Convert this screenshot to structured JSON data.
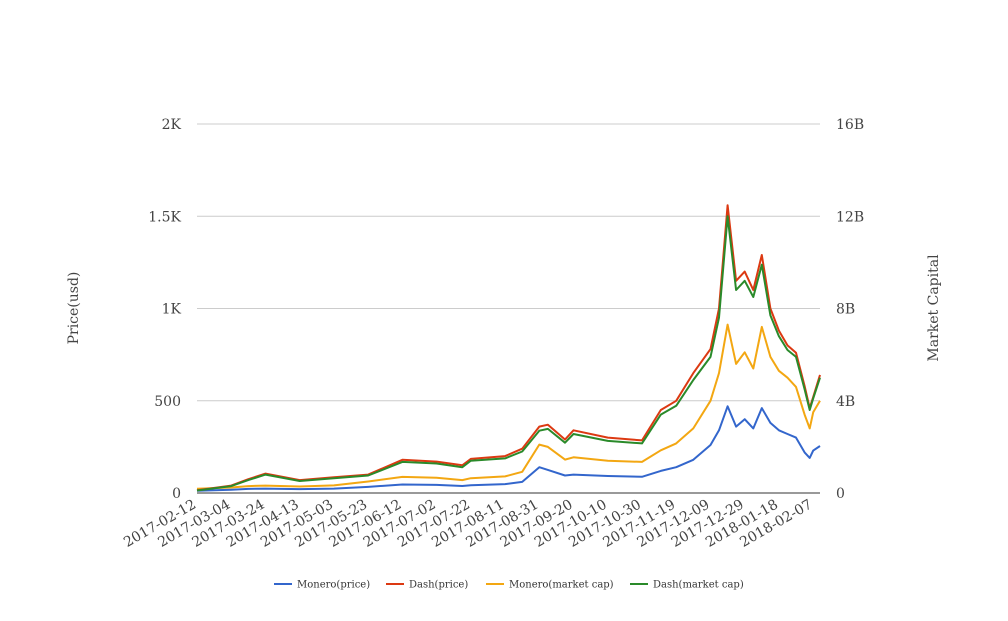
{
  "chart_data": {
    "type": "line",
    "title": "",
    "ylabel": "Price(usd)",
    "y2label": "Market Capital",
    "ylim": [
      0,
      2000
    ],
    "y2lim": [
      0,
      16000000000
    ],
    "yticks": [
      {
        "value": 0,
        "label": "0"
      },
      {
        "value": 500,
        "label": "500"
      },
      {
        "value": 1000,
        "label": "1K"
      },
      {
        "value": 1500,
        "label": "1.5K"
      },
      {
        "value": 2000,
        "label": "2K"
      }
    ],
    "y2ticks": [
      {
        "value": 0,
        "label": "0"
      },
      {
        "value": 4000000000,
        "label": "4B"
      },
      {
        "value": 8000000000,
        "label": "8B"
      },
      {
        "value": 12000000000,
        "label": "12B"
      },
      {
        "value": 16000000000,
        "label": "16B"
      }
    ],
    "xlim": [
      "2017-02-12",
      "2018-02-11"
    ],
    "xtick_labels": [
      "2017-02-12",
      "2017-03-04",
      "2017-03-24",
      "2017-04-13",
      "2017-05-03",
      "2017-05-23",
      "2017-06-12",
      "2017-07-02",
      "2017-07-22",
      "2017-08-11",
      "2017-08-31",
      "2017-09-20",
      "2017-10-10",
      "2017-10-30",
      "2017-11-19",
      "2017-12-09",
      "2017-12-29",
      "2018-01-18",
      "2018-02-07"
    ],
    "grid": true,
    "legend_position": "bottom",
    "series": [
      {
        "name": "Monero(price)",
        "axis": "left",
        "color": "#3366cc",
        "points": [
          [
            "2017-02-12",
            12
          ],
          [
            "2017-03-04",
            18
          ],
          [
            "2017-03-14",
            22
          ],
          [
            "2017-03-24",
            24
          ],
          [
            "2017-04-13",
            21
          ],
          [
            "2017-05-03",
            24
          ],
          [
            "2017-05-23",
            33
          ],
          [
            "2017-06-12",
            46
          ],
          [
            "2017-07-02",
            44
          ],
          [
            "2017-07-17",
            38
          ],
          [
            "2017-07-22",
            42
          ],
          [
            "2017-08-11",
            48
          ],
          [
            "2017-08-21",
            60
          ],
          [
            "2017-08-31",
            140
          ],
          [
            "2017-09-05",
            125
          ],
          [
            "2017-09-15",
            95
          ],
          [
            "2017-09-20",
            100
          ],
          [
            "2017-10-10",
            92
          ],
          [
            "2017-10-30",
            88
          ],
          [
            "2017-11-10",
            120
          ],
          [
            "2017-11-19",
            140
          ],
          [
            "2017-11-29",
            180
          ],
          [
            "2017-12-09",
            260
          ],
          [
            "2017-12-14",
            340
          ],
          [
            "2017-12-19",
            470
          ],
          [
            "2017-12-24",
            360
          ],
          [
            "2017-12-29",
            400
          ],
          [
            "2018-01-03",
            350
          ],
          [
            "2018-01-08",
            460
          ],
          [
            "2018-01-13",
            380
          ],
          [
            "2018-01-18",
            340
          ],
          [
            "2018-01-23",
            320
          ],
          [
            "2018-01-28",
            300
          ],
          [
            "2018-02-02",
            220
          ],
          [
            "2018-02-05",
            190
          ],
          [
            "2018-02-07",
            230
          ],
          [
            "2018-02-11",
            255
          ]
        ]
      },
      {
        "name": "Dash(price)",
        "axis": "left",
        "color": "#dc3912",
        "points": [
          [
            "2017-02-12",
            15
          ],
          [
            "2017-03-04",
            40
          ],
          [
            "2017-03-14",
            75
          ],
          [
            "2017-03-24",
            105
          ],
          [
            "2017-04-13",
            70
          ],
          [
            "2017-05-03",
            85
          ],
          [
            "2017-05-23",
            100
          ],
          [
            "2017-06-12",
            180
          ],
          [
            "2017-07-02",
            170
          ],
          [
            "2017-07-17",
            150
          ],
          [
            "2017-07-22",
            185
          ],
          [
            "2017-08-11",
            200
          ],
          [
            "2017-08-21",
            240
          ],
          [
            "2017-08-31",
            360
          ],
          [
            "2017-09-05",
            370
          ],
          [
            "2017-09-15",
            290
          ],
          [
            "2017-09-20",
            340
          ],
          [
            "2017-10-10",
            300
          ],
          [
            "2017-10-30",
            285
          ],
          [
            "2017-11-10",
            450
          ],
          [
            "2017-11-19",
            500
          ],
          [
            "2017-11-29",
            650
          ],
          [
            "2017-12-09",
            780
          ],
          [
            "2017-12-14",
            1000
          ],
          [
            "2017-12-19",
            1560
          ],
          [
            "2017-12-24",
            1150
          ],
          [
            "2017-12-29",
            1200
          ],
          [
            "2018-01-03",
            1100
          ],
          [
            "2018-01-08",
            1290
          ],
          [
            "2018-01-13",
            1000
          ],
          [
            "2018-01-18",
            880
          ],
          [
            "2018-01-23",
            800
          ],
          [
            "2018-01-28",
            760
          ],
          [
            "2018-02-02",
            580
          ],
          [
            "2018-02-05",
            460
          ],
          [
            "2018-02-07",
            520
          ],
          [
            "2018-02-11",
            640
          ]
        ]
      },
      {
        "name": "Monero(market cap)",
        "axis": "right",
        "color": "#f3a712",
        "points": [
          [
            "2017-02-12",
            180000000
          ],
          [
            "2017-03-04",
            240000000
          ],
          [
            "2017-03-14",
            300000000
          ],
          [
            "2017-03-24",
            320000000
          ],
          [
            "2017-04-13",
            280000000
          ],
          [
            "2017-05-03",
            330000000
          ],
          [
            "2017-05-23",
            500000000
          ],
          [
            "2017-06-12",
            700000000
          ],
          [
            "2017-07-02",
            660000000
          ],
          [
            "2017-07-17",
            560000000
          ],
          [
            "2017-07-22",
            640000000
          ],
          [
            "2017-08-11",
            720000000
          ],
          [
            "2017-08-21",
            920000000
          ],
          [
            "2017-08-31",
            2100000000
          ],
          [
            "2017-09-05",
            2000000000
          ],
          [
            "2017-09-15",
            1450000000
          ],
          [
            "2017-09-20",
            1550000000
          ],
          [
            "2017-10-10",
            1400000000
          ],
          [
            "2017-10-30",
            1350000000
          ],
          [
            "2017-11-10",
            1850000000
          ],
          [
            "2017-11-19",
            2150000000
          ],
          [
            "2017-11-29",
            2800000000
          ],
          [
            "2017-12-09",
            4000000000
          ],
          [
            "2017-12-14",
            5200000000
          ],
          [
            "2017-12-19",
            7300000000
          ],
          [
            "2017-12-24",
            5600000000
          ],
          [
            "2017-12-29",
            6100000000
          ],
          [
            "2018-01-03",
            5400000000
          ],
          [
            "2018-01-08",
            7200000000
          ],
          [
            "2018-01-13",
            5900000000
          ],
          [
            "2018-01-18",
            5300000000
          ],
          [
            "2018-01-23",
            5000000000
          ],
          [
            "2018-01-28",
            4600000000
          ],
          [
            "2018-02-02",
            3400000000
          ],
          [
            "2018-02-05",
            2800000000
          ],
          [
            "2018-02-07",
            3500000000
          ],
          [
            "2018-02-11",
            4000000000
          ]
        ]
      },
      {
        "name": "Dash(market cap)",
        "axis": "right",
        "color": "#2a8a2a",
        "points": [
          [
            "2017-02-12",
            110000000
          ],
          [
            "2017-03-04",
            300000000
          ],
          [
            "2017-03-14",
            560000000
          ],
          [
            "2017-03-24",
            800000000
          ],
          [
            "2017-04-13",
            520000000
          ],
          [
            "2017-05-03",
            640000000
          ],
          [
            "2017-05-23",
            760000000
          ],
          [
            "2017-06-12",
            1350000000
          ],
          [
            "2017-07-02",
            1280000000
          ],
          [
            "2017-07-17",
            1120000000
          ],
          [
            "2017-07-22",
            1400000000
          ],
          [
            "2017-08-11",
            1500000000
          ],
          [
            "2017-08-21",
            1800000000
          ],
          [
            "2017-08-31",
            2700000000
          ],
          [
            "2017-09-05",
            2780000000
          ],
          [
            "2017-09-15",
            2180000000
          ],
          [
            "2017-09-20",
            2560000000
          ],
          [
            "2017-10-10",
            2260000000
          ],
          [
            "2017-10-30",
            2150000000
          ],
          [
            "2017-11-10",
            3400000000
          ],
          [
            "2017-11-19",
            3780000000
          ],
          [
            "2017-11-29",
            4900000000
          ],
          [
            "2017-12-09",
            5900000000
          ],
          [
            "2017-12-14",
            7600000000
          ],
          [
            "2017-12-19",
            12000000000
          ],
          [
            "2017-12-24",
            8800000000
          ],
          [
            "2017-12-29",
            9200000000
          ],
          [
            "2018-01-03",
            8500000000
          ],
          [
            "2018-01-08",
            9900000000
          ],
          [
            "2018-01-13",
            7700000000
          ],
          [
            "2018-01-18",
            6800000000
          ],
          [
            "2018-01-23",
            6200000000
          ],
          [
            "2018-01-28",
            5900000000
          ],
          [
            "2018-02-02",
            4500000000
          ],
          [
            "2018-02-05",
            3600000000
          ],
          [
            "2018-02-07",
            4100000000
          ],
          [
            "2018-02-11",
            5000000000
          ]
        ]
      }
    ]
  }
}
